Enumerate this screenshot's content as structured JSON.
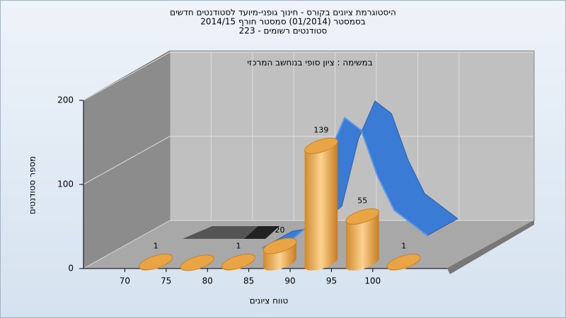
{
  "chart_data": {
    "type": "histogram",
    "title": [
      "היסטוגרמת ציונים בקורס - חינוך גופני-מיועד לסטודנטים חדשים",
      "בסמסטר  (01/2014)  סמסטר חורף 2014/15",
      "סטודנטים רשומים - 223"
    ],
    "subtitle": "במשימה : ציון סופי במחשב המרכזי",
    "xlabel": "טווח ציונים",
    "ylabel": "מספר סטודנטים",
    "bins": [
      70,
      75,
      80,
      85,
      90,
      95,
      100,
      105
    ],
    "values": [
      1,
      0,
      1,
      20,
      139,
      55,
      1
    ],
    "color": "#e9a545",
    "xlim": [
      65,
      109
    ],
    "xticks": [
      70,
      75,
      80,
      85,
      90,
      95,
      100
    ],
    "ylim": [
      0,
      200
    ],
    "yticks": [
      0,
      100,
      200
    ],
    "grid": true,
    "curve": {
      "color": "#3a7bd5",
      "x": [
        84,
        87,
        90,
        92,
        94,
        96,
        98,
        100,
        104
      ],
      "values": [
        10,
        15,
        40,
        120,
        165,
        150,
        95,
        55,
        25
      ]
    }
  }
}
